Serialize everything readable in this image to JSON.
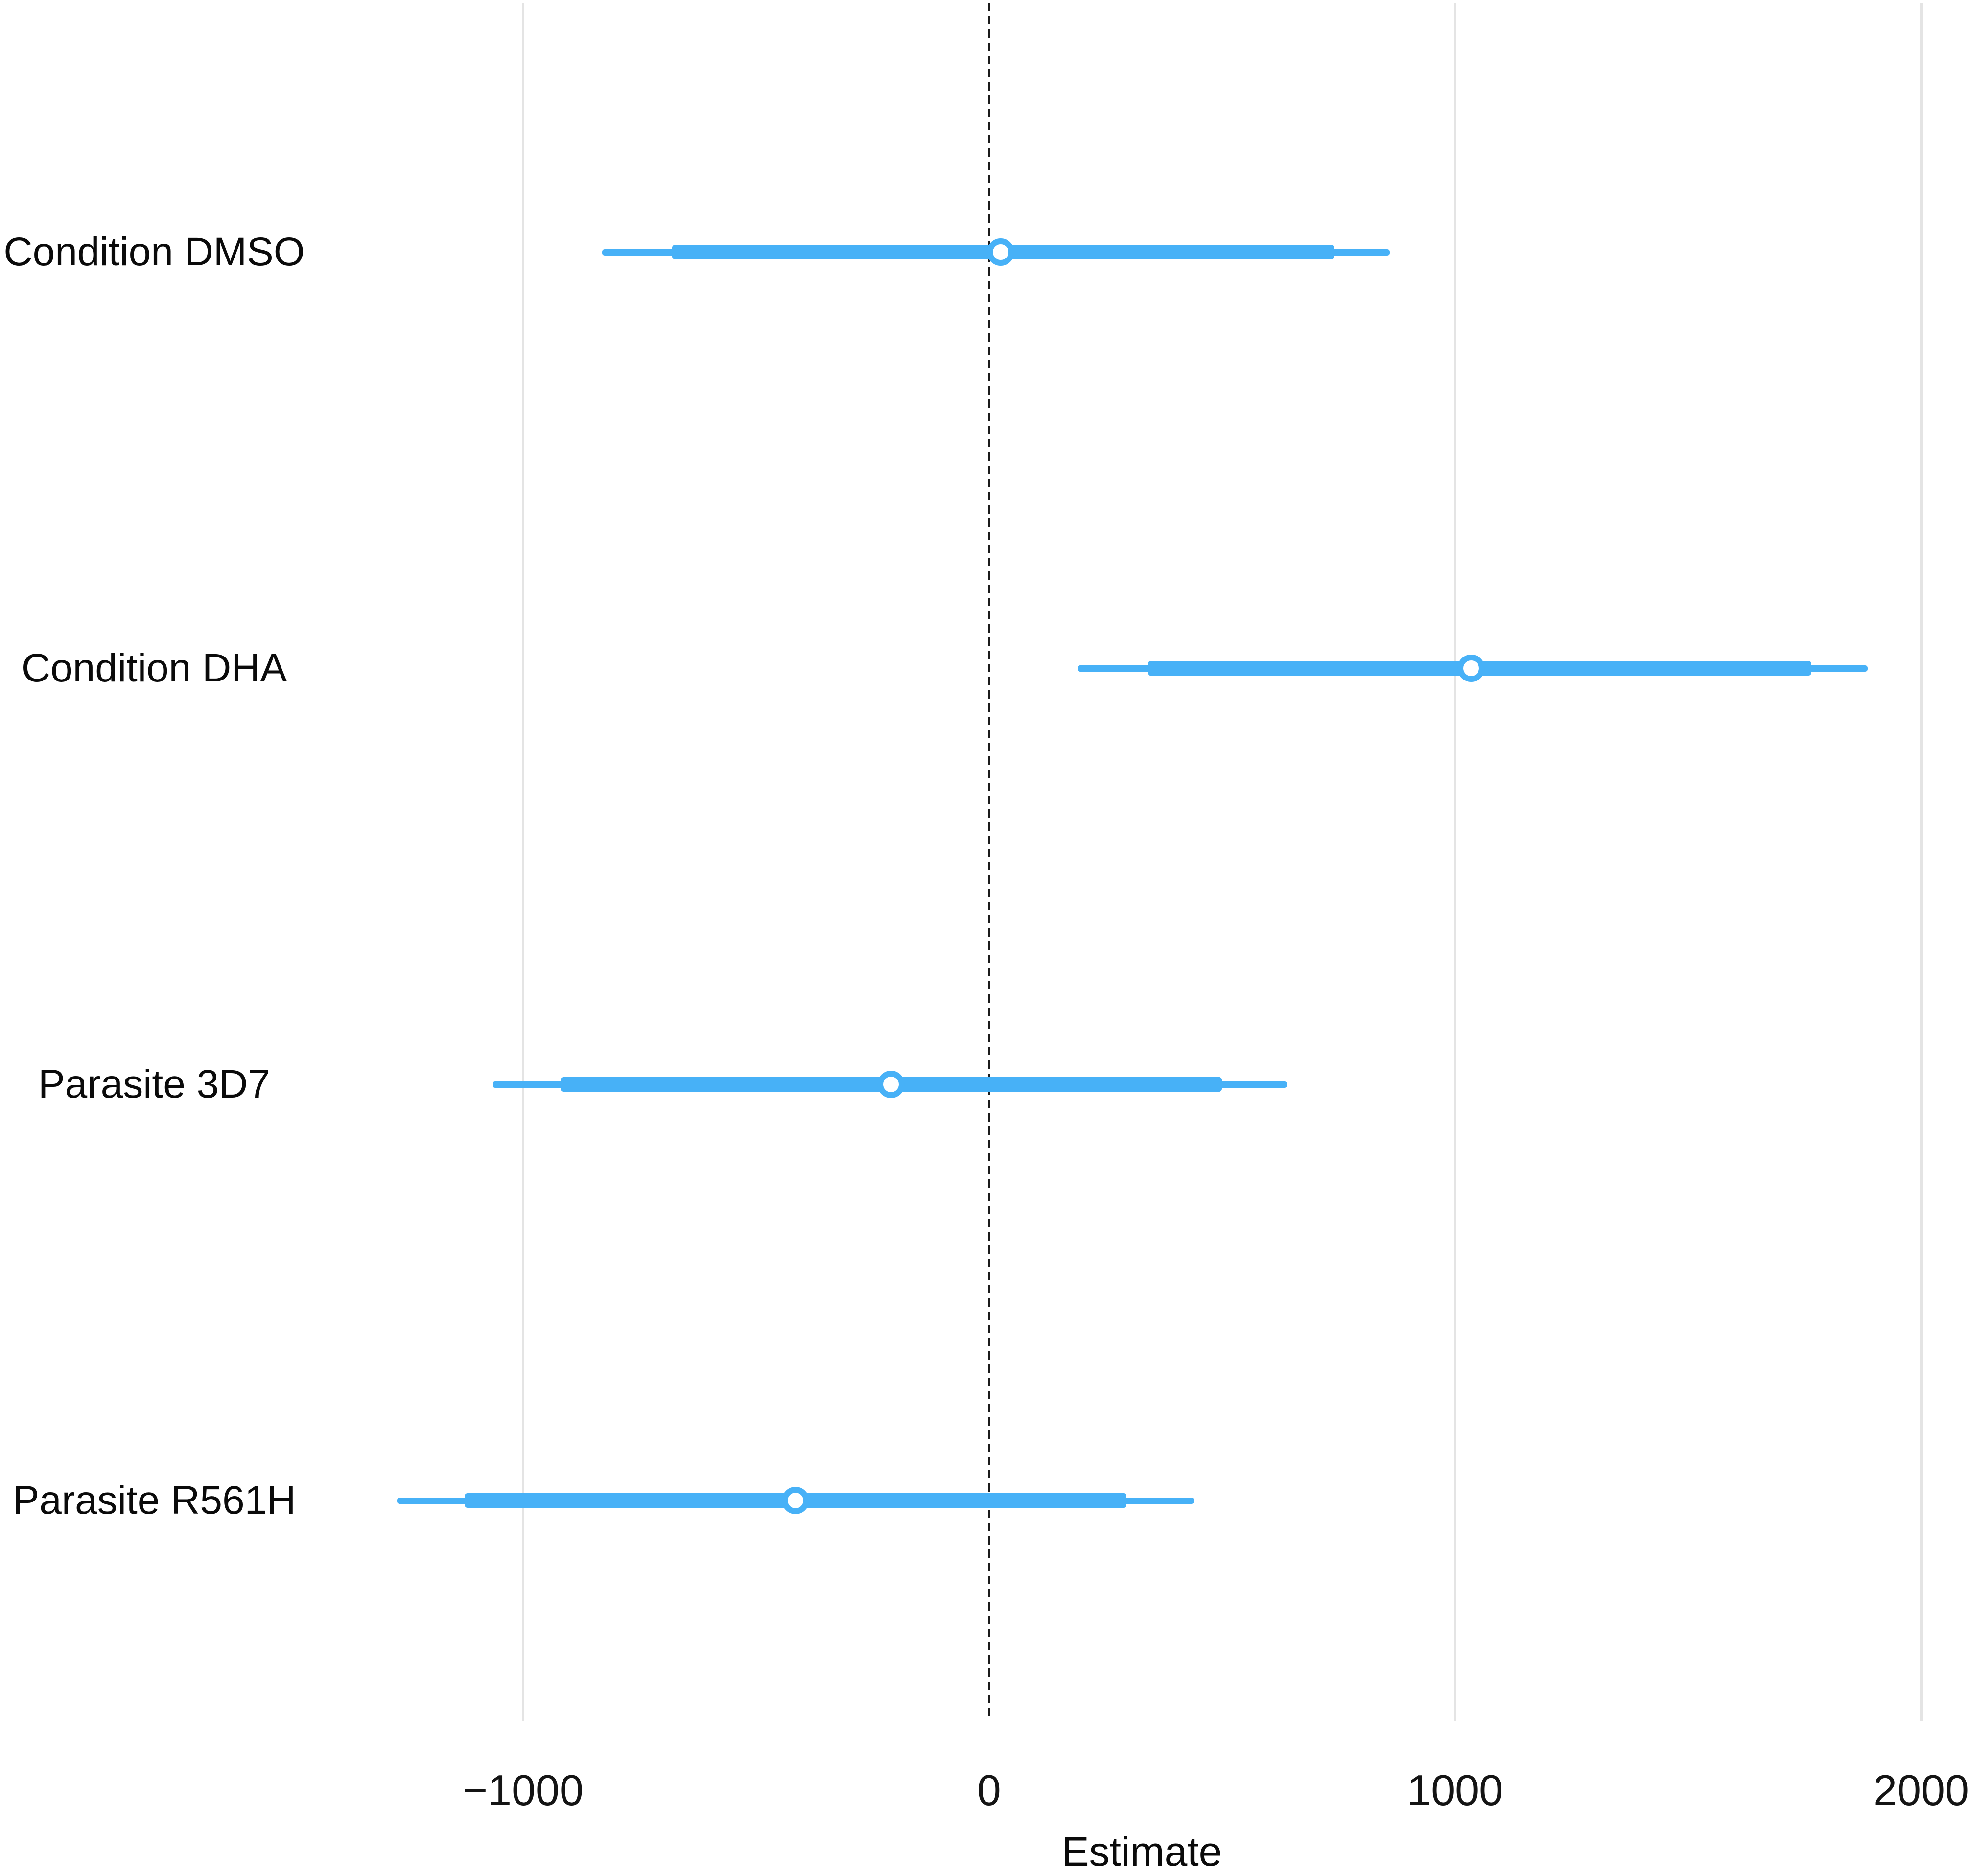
{
  "chart_data": {
    "type": "pointrange",
    "title": "",
    "xlabel": "Estimate",
    "ylabel": "",
    "categories": [
      "Condition DMSO",
      "Condition DHA",
      "Parasite 3D7",
      "Parasite R561H"
    ],
    "rows": [
      {
        "label": "Condition DMSO",
        "estimate": 25,
        "inner_interval": [
          -680,
          740
        ],
        "outer_interval": [
          -830,
          860
        ]
      },
      {
        "label": "Condition DHA",
        "estimate": 1035,
        "inner_interval": [
          340,
          1765
        ],
        "outer_interval": [
          190,
          1885
        ]
      },
      {
        "label": "Parasite 3D7",
        "estimate": -210,
        "inner_interval": [
          -920,
          500
        ],
        "outer_interval": [
          -1065,
          640
        ]
      },
      {
        "label": "Parasite R561H",
        "estimate": -415,
        "inner_interval": [
          -1125,
          295
        ],
        "outer_interval": [
          -1270,
          440
        ]
      }
    ],
    "x_ticks": [
      -1000,
      0,
      1000,
      2000
    ],
    "x_tick_labels": [
      "−1000",
      "0",
      "1000",
      "2000"
    ],
    "xlim": [
      -1450,
      2105
    ],
    "zero_reference_line": 0,
    "grid": "vertical light-gray gridlines at -1000, 1000, 2000; dashed black line at 0",
    "legend": "none",
    "colors": {
      "interval": "#47b1f7",
      "point_fill": "#ffffff",
      "gridline": "#e4e4e4",
      "zero_line": "#1b1b1b",
      "text": "#0a0a0a",
      "background": "#ffffff"
    }
  }
}
